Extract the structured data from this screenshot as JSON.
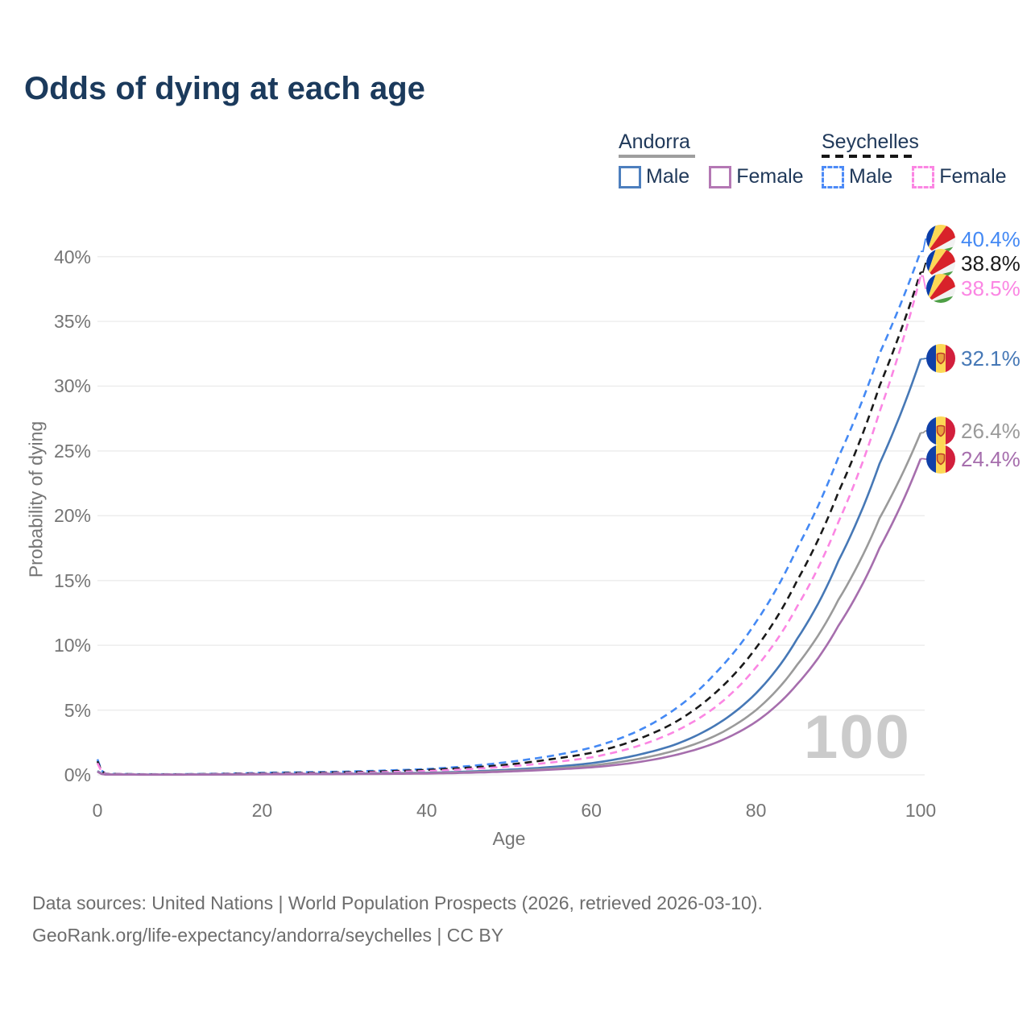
{
  "title": "Odds of dying at each age",
  "legend": {
    "groups": [
      {
        "label": "Andorra",
        "line_style": "solid",
        "line_color": "#9e9e9e",
        "items": [
          {
            "label": "Male",
            "color": "#4d7fbe",
            "style": "solid"
          },
          {
            "label": "Female",
            "color": "#b478b4",
            "style": "solid"
          }
        ]
      },
      {
        "label": "Seychelles",
        "line_style": "dashed",
        "line_color": "#161616",
        "items": [
          {
            "label": "Male",
            "color": "#4d8bf7",
            "style": "dashed"
          },
          {
            "label": "Female",
            "color": "#fb86e3",
            "style": "dashed"
          }
        ]
      }
    ]
  },
  "watermark": "100",
  "footer": {
    "line1": "Data sources: United Nations | World Population Prospects (2026, retrieved 2026-03-10).",
    "line2": "GeoRank.org/life-expectancy/andorra/seychelles | CC BY"
  },
  "chart_data": {
    "type": "line",
    "title": "Odds of dying at each age",
    "xlabel": "Age",
    "ylabel": "Probability of dying",
    "xlim": [
      0,
      100
    ],
    "ylim": [
      0,
      42
    ],
    "grid": true,
    "legend_position": "top-right",
    "xticks": [
      "0",
      "20",
      "40",
      "60",
      "80",
      "100"
    ],
    "xtick_values": [
      0,
      20,
      40,
      60,
      80,
      100
    ],
    "yticks": [
      "0%",
      "5%",
      "10%",
      "15%",
      "20%",
      "25%",
      "30%",
      "35%",
      "40%"
    ],
    "ytick_values": [
      0,
      5,
      10,
      15,
      20,
      25,
      30,
      35,
      40
    ],
    "ages": [
      0,
      1,
      5,
      10,
      20,
      30,
      40,
      50,
      55,
      60,
      65,
      70,
      75,
      80,
      85,
      90,
      95,
      100
    ],
    "series": [
      {
        "name": "Seychelles Male",
        "country": "Seychelles",
        "sex": "Male",
        "style": "dashed",
        "color": "#4489f4",
        "flag": "seychelles",
        "end_value": "40.4%",
        "values_pct": [
          1.2,
          0.09,
          0.05,
          0.05,
          0.16,
          0.25,
          0.45,
          1.0,
          1.45,
          2.1,
          3.2,
          5.0,
          7.8,
          11.8,
          17.5,
          24.5,
          32.5,
          40.4
        ]
      },
      {
        "name": "Seychelles Both sexes",
        "country": "Seychelles",
        "sex": "Both",
        "style": "dashed",
        "color": "#1a1a1a",
        "flag": "seychelles",
        "end_value": "38.8%",
        "values_pct": [
          1.05,
          0.08,
          0.045,
          0.04,
          0.12,
          0.2,
          0.38,
          0.8,
          1.2,
          1.7,
          2.6,
          4.0,
          6.3,
          9.8,
          15.0,
          21.8,
          30.0,
          38.8
        ]
      },
      {
        "name": "Seychelles Female",
        "country": "Seychelles",
        "sex": "Female",
        "style": "dashed",
        "color": "#fb86e3",
        "flag": "seychelles",
        "end_value": "38.5%",
        "values_pct": [
          0.9,
          0.07,
          0.04,
          0.035,
          0.09,
          0.15,
          0.3,
          0.65,
          0.95,
          1.35,
          2.1,
          3.3,
          5.2,
          8.3,
          13.0,
          19.5,
          28.0,
          38.5
        ]
      },
      {
        "name": "Andorra Male",
        "country": "Andorra",
        "sex": "Male",
        "style": "solid",
        "color": "#4678b6",
        "flag": "andorra",
        "end_value": "32.1%",
        "values_pct": [
          0.3,
          0.03,
          0.02,
          0.02,
          0.06,
          0.09,
          0.16,
          0.4,
          0.6,
          0.9,
          1.45,
          2.3,
          3.8,
          6.3,
          10.5,
          16.5,
          24.0,
          32.1
        ]
      },
      {
        "name": "Andorra Both sexes",
        "country": "Andorra",
        "sex": "Both",
        "style": "solid",
        "color": "#9a9a9a",
        "flag": "andorra",
        "end_value": "26.4%",
        "values_pct": [
          0.27,
          0.025,
          0.018,
          0.017,
          0.05,
          0.07,
          0.13,
          0.32,
          0.48,
          0.72,
          1.15,
          1.85,
          3.0,
          5.0,
          8.5,
          13.5,
          19.8,
          26.4
        ]
      },
      {
        "name": "Andorra Female",
        "country": "Andorra",
        "sex": "Female",
        "style": "solid",
        "color": "#a66ead",
        "flag": "andorra",
        "end_value": "24.4%",
        "values_pct": [
          0.24,
          0.02,
          0.015,
          0.014,
          0.04,
          0.055,
          0.1,
          0.26,
          0.4,
          0.58,
          0.92,
          1.5,
          2.45,
          4.1,
          7.0,
          11.5,
          17.5,
          24.4
        ]
      }
    ]
  }
}
